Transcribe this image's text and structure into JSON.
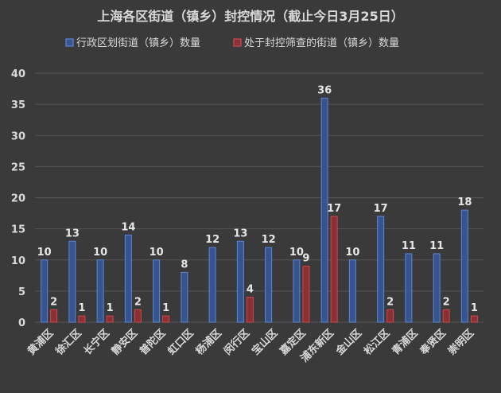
{
  "chart_data": {
    "type": "bar",
    "title": "上海各区街道（镇乡）封控情况（截止今日3月25日）",
    "categories": [
      "黄浦区",
      "徐汇区",
      "长宁区",
      "静安区",
      "普陀区",
      "虹口区",
      "杨浦区",
      "闵行区",
      "宝山区",
      "嘉定区",
      "浦东新区",
      "金山区",
      "松江区",
      "青浦区",
      "奉贤区",
      "崇明区"
    ],
    "series": [
      {
        "name": "行政区划街道（镇乡）数量",
        "values": [
          10,
          13,
          10,
          14,
          10,
          8,
          12,
          13,
          12,
          10,
          36,
          10,
          17,
          11,
          11,
          18
        ]
      },
      {
        "name": "处于封控筛查的街道（镇乡）数量",
        "values": [
          2,
          1,
          1,
          2,
          1,
          null,
          null,
          4,
          null,
          9,
          17,
          null,
          2,
          null,
          2,
          1
        ]
      }
    ],
    "yticks": [
      0,
      5,
      10,
      15,
      20,
      25,
      30,
      35,
      40
    ],
    "ylim": [
      0,
      40
    ],
    "grid": true,
    "legend_position": "top",
    "colors": {
      "background": "#3a3a3a",
      "grid": "#555555",
      "series1_fill": "#37548e",
      "series1_stroke": "#5b86d6",
      "series2_fill": "#8a2f33",
      "series2_stroke": "#d0484d",
      "text": "#d9d9d9",
      "label": "#e6e6e6"
    }
  }
}
